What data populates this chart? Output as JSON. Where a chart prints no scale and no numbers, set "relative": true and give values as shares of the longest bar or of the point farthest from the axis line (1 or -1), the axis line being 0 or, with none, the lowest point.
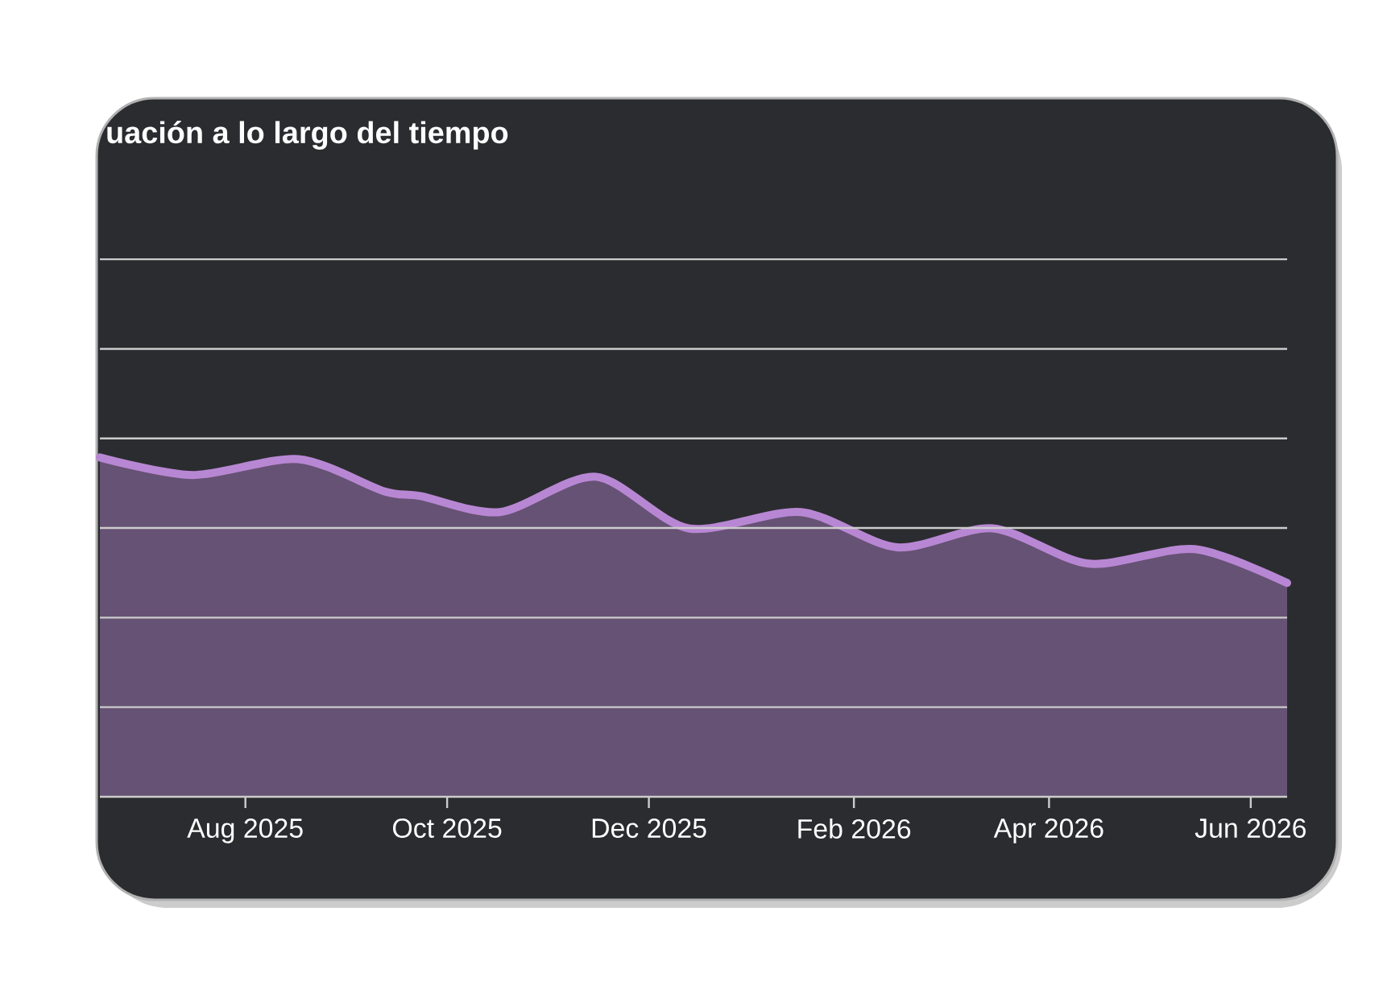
{
  "chart_data": {
    "type": "area",
    "title": "uación a lo largo del tiempo",
    "relative": true,
    "grid": "y",
    "x": [
      "2025-06-18",
      "2025-07-16",
      "2025-08-17",
      "2025-09-12",
      "2025-09-23",
      "2025-10-17",
      "2025-11-15",
      "2025-12-13",
      "2026-01-16",
      "2026-02-14",
      "2026-03-15",
      "2026-04-13",
      "2026-05-15",
      "2026-06-12"
    ],
    "values": [
      1.0,
      0.948,
      0.995,
      0.9,
      0.886,
      0.839,
      0.943,
      0.791,
      0.839,
      0.735,
      0.791,
      0.687,
      0.73,
      0.63
    ],
    "color": "#b887d4",
    "xlim": [
      "2025-06-18",
      "2026-06-12"
    ],
    "xticks": [
      {
        "value": "2025-08-01",
        "label": "Aug 2025"
      },
      {
        "value": "2025-10-01",
        "label": "Oct 2025"
      },
      {
        "value": "2025-12-01",
        "label": "Dec 2025"
      },
      {
        "value": "2026-02-01",
        "label": "Feb 2026"
      },
      {
        "value": "2026-04-01",
        "label": "Apr 2026"
      },
      {
        "value": "2026-06-01",
        "label": "Jun 2026"
      }
    ]
  }
}
